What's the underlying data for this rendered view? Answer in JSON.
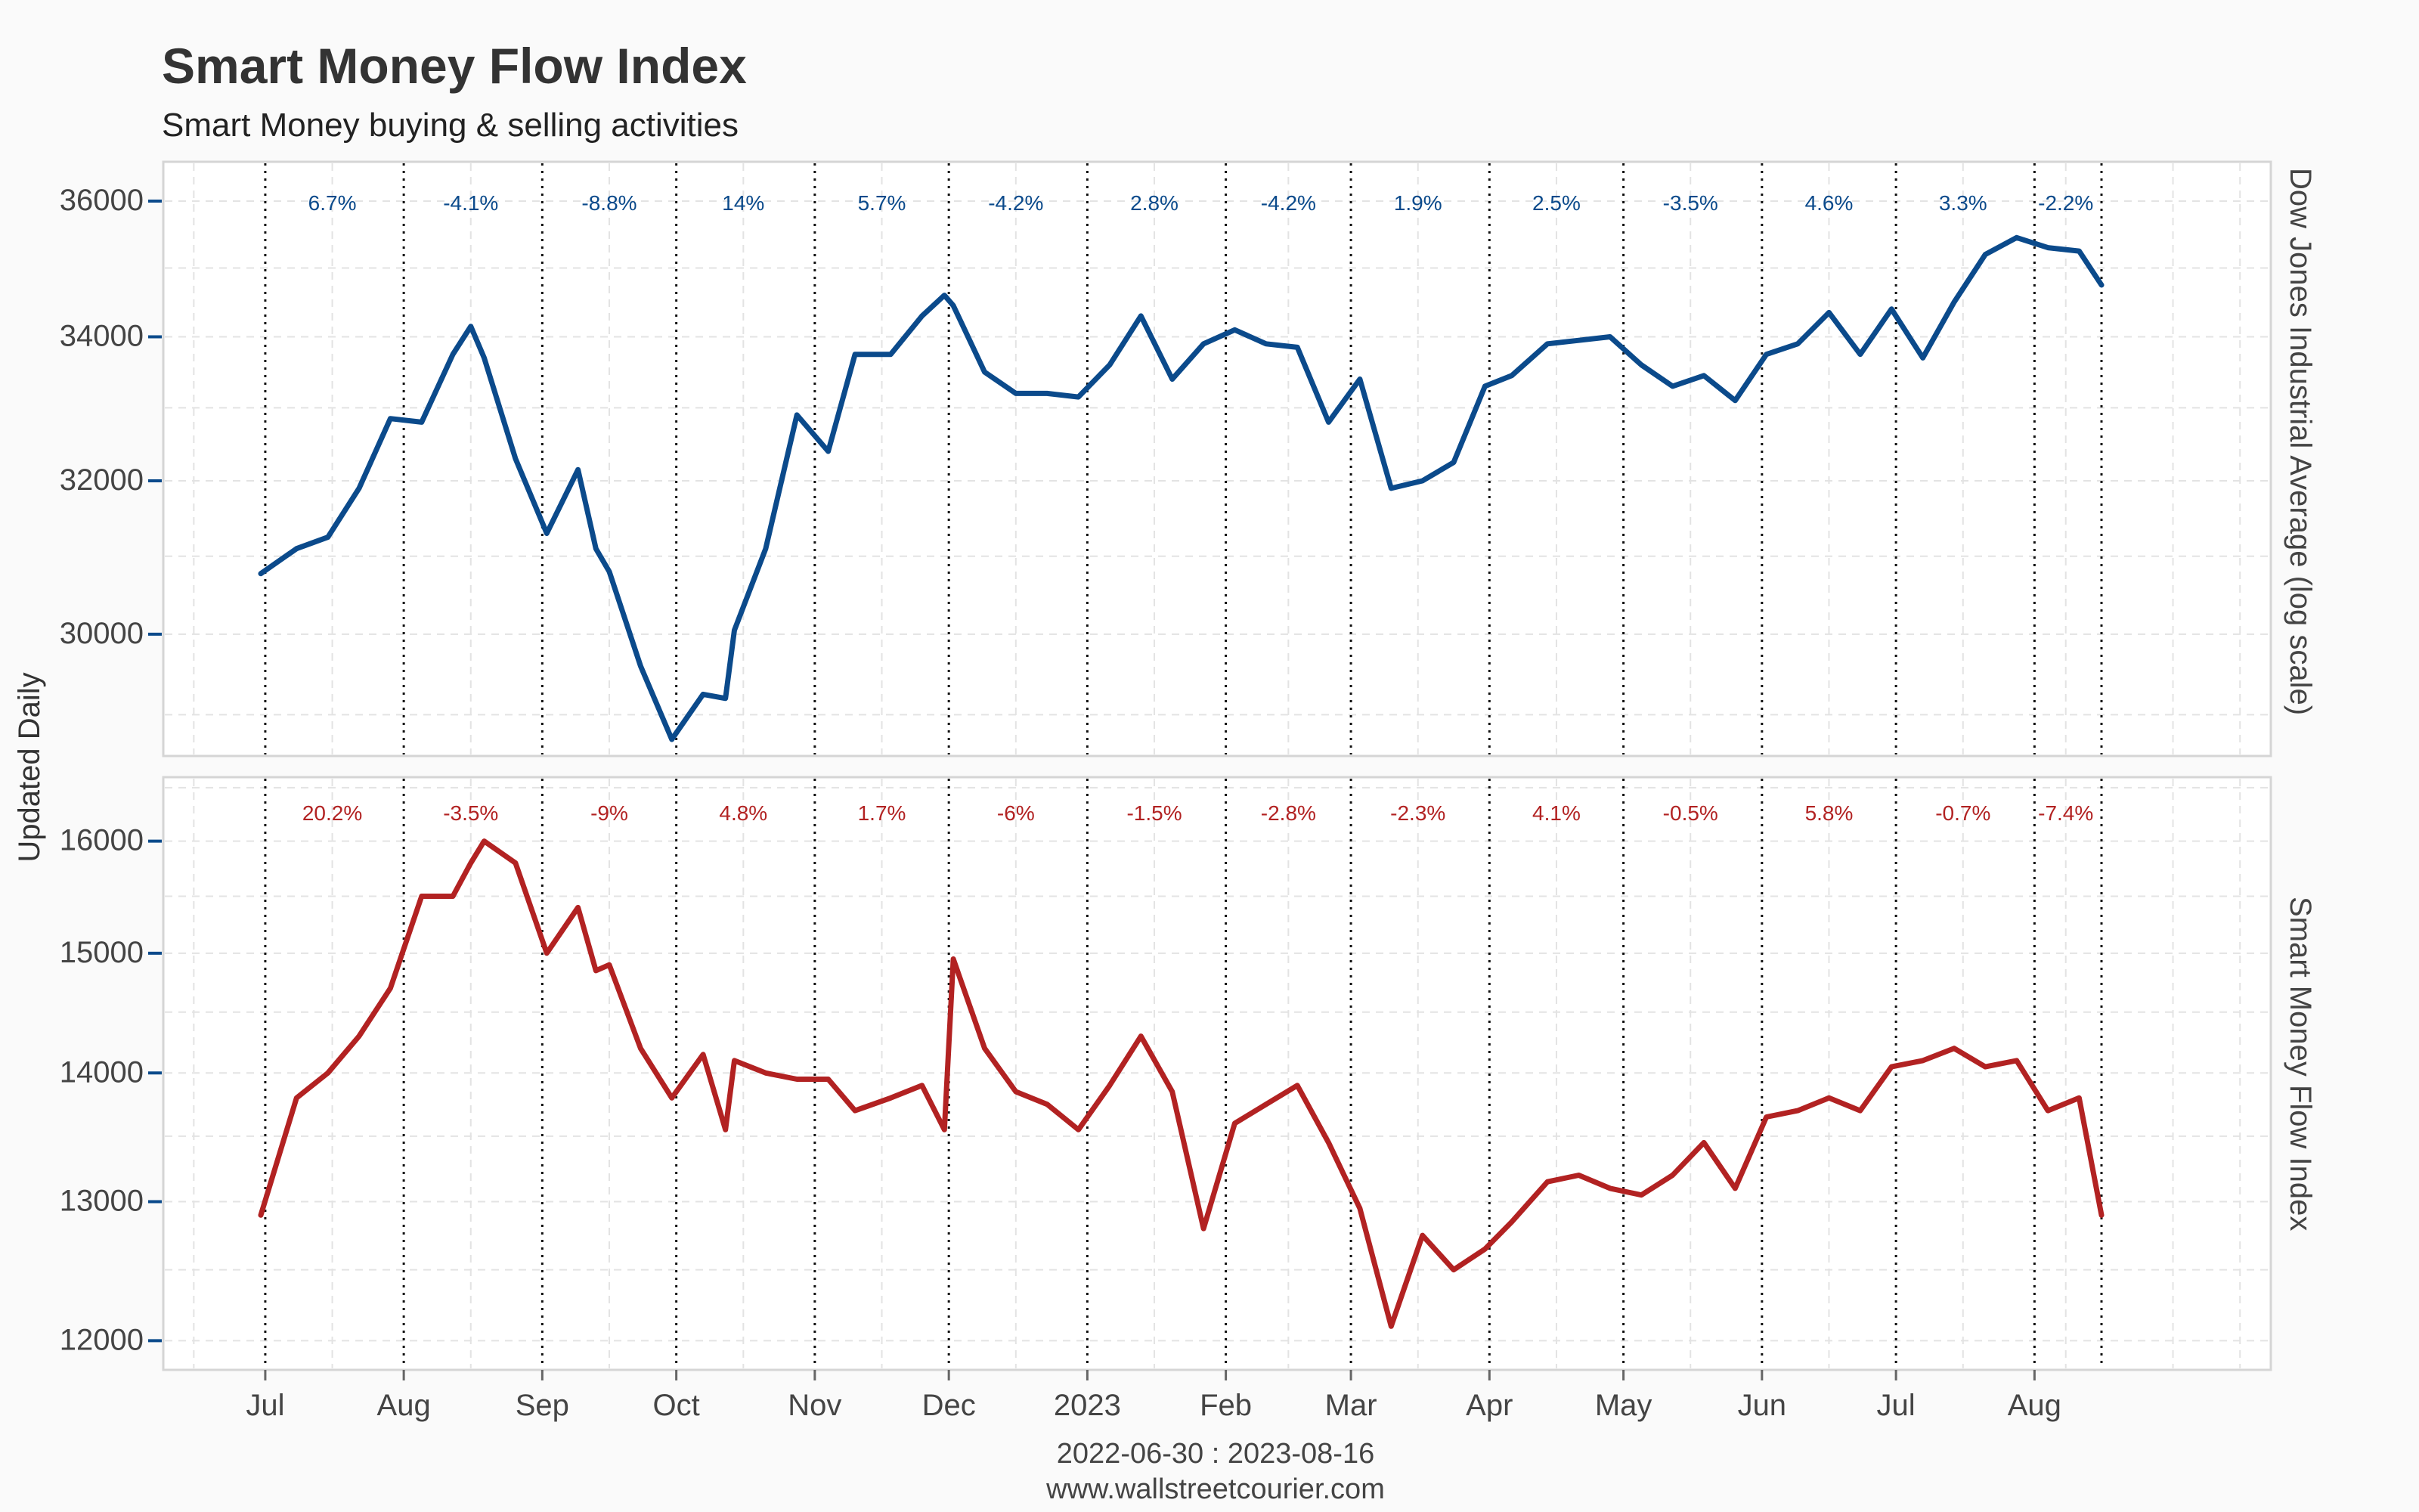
{
  "header": {
    "title": "Smart Money Flow Index",
    "subtitle": "Smart Money buying & selling activities"
  },
  "axes": {
    "y_left_title": "Updated Daily",
    "x_range_caption": "2022-06-30 : 2023-08-16",
    "source_caption": "www.wallstreetcourier.com",
    "month_labels": [
      "Jul",
      "Aug",
      "Sep",
      "Oct",
      "Nov",
      "Dec",
      "2023",
      "Feb",
      "Mar",
      "Apr",
      "May",
      "Jun",
      "Jul",
      "Aug"
    ]
  },
  "colors": {
    "dow": "#0b4a8b",
    "smfi": "#b22222",
    "grid": "#e3e3e3",
    "panel_border": "#d5d5d5"
  },
  "chart_data": [
    {
      "type": "line",
      "series": [
        {
          "name": "Dow Jones Industrial Average (log scale)"
        }
      ],
      "side_label": "Dow Jones Industrial Average (log scale)",
      "scale": "log",
      "yticks": [
        "30000",
        "32000",
        "34000",
        "36000"
      ],
      "ylim": [
        28500,
        36600
      ],
      "x": [
        "2022-06-30",
        "2022-07-08",
        "2022-07-15",
        "2022-07-22",
        "2022-07-29",
        "2022-08-05",
        "2022-08-12",
        "2022-08-16",
        "2022-08-19",
        "2022-08-26",
        "2022-09-02",
        "2022-09-09",
        "2022-09-13",
        "2022-09-16",
        "2022-09-23",
        "2022-09-30",
        "2022-10-07",
        "2022-10-12",
        "2022-10-14",
        "2022-10-21",
        "2022-10-28",
        "2022-11-04",
        "2022-11-10",
        "2022-11-18",
        "2022-11-25",
        "2022-11-30",
        "2022-12-02",
        "2022-12-09",
        "2022-12-16",
        "2022-12-23",
        "2022-12-30",
        "2023-01-06",
        "2023-01-13",
        "2023-01-20",
        "2023-01-27",
        "2023-02-03",
        "2023-02-10",
        "2023-02-17",
        "2023-02-24",
        "2023-03-03",
        "2023-03-10",
        "2023-03-17",
        "2023-03-24",
        "2023-03-31",
        "2023-04-06",
        "2023-04-14",
        "2023-04-21",
        "2023-04-28",
        "2023-05-05",
        "2023-05-12",
        "2023-05-19",
        "2023-05-26",
        "2023-06-02",
        "2023-06-09",
        "2023-06-16",
        "2023-06-23",
        "2023-06-30",
        "2023-07-07",
        "2023-07-14",
        "2023-07-21",
        "2023-07-28",
        "2023-08-04",
        "2023-08-11",
        "2023-08-16"
      ],
      "values": [
        30775,
        31100,
        31250,
        31900,
        32850,
        32800,
        33750,
        34150,
        33700,
        32300,
        31300,
        32150,
        31100,
        30800,
        29600,
        28700,
        29250,
        29200,
        30050,
        31100,
        32900,
        32400,
        33750,
        33750,
        34300,
        34600,
        34450,
        33500,
        33200,
        33200,
        33150,
        33600,
        34300,
        33400,
        33900,
        34100,
        33900,
        33850,
        32800,
        33400,
        31900,
        32000,
        32250,
        33300,
        33450,
        33900,
        33950,
        34000,
        33600,
        33300,
        33450,
        33100,
        33750,
        33900,
        34350,
        33750,
        34400,
        33700,
        34500,
        35200,
        35450,
        35300,
        35250,
        34750
      ],
      "period_changes": [
        "6.7%",
        "-4.1%",
        "-8.8%",
        "14%",
        "5.7%",
        "-4.2%",
        "2.8%",
        "-4.2%",
        "1.9%",
        "2.5%",
        "-3.5%",
        "4.6%",
        "3.3%",
        "-2.2%"
      ]
    },
    {
      "type": "line",
      "series": [
        {
          "name": "Smart Money Flow Index"
        }
      ],
      "side_label": "Smart Money Flow Index",
      "scale": "log",
      "yticks": [
        "12000",
        "13000",
        "14000",
        "15000",
        "16000"
      ],
      "ylim": [
        11800,
        16600
      ],
      "x": [
        "2022-06-30",
        "2022-07-08",
        "2022-07-15",
        "2022-07-22",
        "2022-07-29",
        "2022-08-05",
        "2022-08-12",
        "2022-08-16",
        "2022-08-19",
        "2022-08-26",
        "2022-09-02",
        "2022-09-09",
        "2022-09-13",
        "2022-09-16",
        "2022-09-23",
        "2022-09-30",
        "2022-10-07",
        "2022-10-12",
        "2022-10-14",
        "2022-10-21",
        "2022-10-28",
        "2022-11-04",
        "2022-11-10",
        "2022-11-18",
        "2022-11-25",
        "2022-11-30",
        "2022-12-02",
        "2022-12-09",
        "2022-12-16",
        "2022-12-23",
        "2022-12-30",
        "2023-01-06",
        "2023-01-13",
        "2023-01-20",
        "2023-01-27",
        "2023-02-03",
        "2023-02-10",
        "2023-02-17",
        "2023-02-24",
        "2023-03-03",
        "2023-03-10",
        "2023-03-17",
        "2023-03-24",
        "2023-03-31",
        "2023-04-06",
        "2023-04-14",
        "2023-04-21",
        "2023-04-28",
        "2023-05-05",
        "2023-05-12",
        "2023-05-19",
        "2023-05-26",
        "2023-06-02",
        "2023-06-09",
        "2023-06-16",
        "2023-06-23",
        "2023-06-30",
        "2023-07-07",
        "2023-07-14",
        "2023-07-21",
        "2023-07-28",
        "2023-08-04",
        "2023-08-11",
        "2023-08-16"
      ],
      "values": [
        12900,
        13800,
        14000,
        14300,
        14700,
        15500,
        15500,
        15800,
        16000,
        15800,
        15000,
        15400,
        14850,
        14900,
        14200,
        13800,
        14150,
        13550,
        14100,
        14000,
        13950,
        13950,
        13700,
        13800,
        13900,
        13550,
        14950,
        14200,
        13850,
        13750,
        13550,
        13900,
        14300,
        13850,
        12800,
        13600,
        13750,
        13900,
        13450,
        12950,
        12100,
        12750,
        12500,
        12650,
        12850,
        13150,
        13200,
        13100,
        13050,
        13200,
        13450,
        13100,
        13650,
        13700,
        13800,
        13700,
        14050,
        14100,
        14200,
        14050,
        14100,
        13700,
        13800,
        12900
      ],
      "period_changes": [
        "20.2%",
        "-3.5%",
        "-9%",
        "4.8%",
        "1.7%",
        "-6%",
        "-1.5%",
        "-2.8%",
        "-2.3%",
        "4.1%",
        "-0.5%",
        "5.8%",
        "-0.7%",
        "-7.4%"
      ]
    }
  ]
}
